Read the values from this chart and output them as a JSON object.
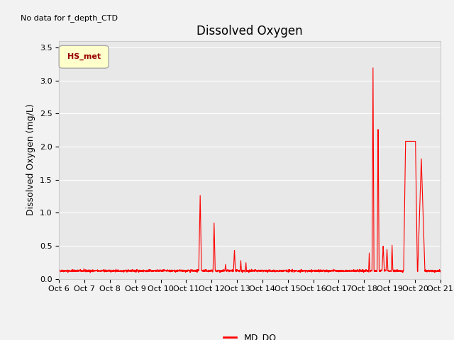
{
  "title": "Dissolved Oxygen",
  "no_data_text": "No data for f_depth_CTD",
  "ylabel": "Dissolved Oxygen (mg/L)",
  "ylim": [
    0.0,
    3.6
  ],
  "yticks": [
    0.0,
    0.5,
    1.0,
    1.5,
    2.0,
    2.5,
    3.0,
    3.5
  ],
  "xlabels": [
    "Oct 6",
    "Oct 7",
    "Oct 8",
    "Oct 9",
    "Oct 10",
    "Oct 11",
    "Oct 12",
    "Oct 13",
    "Oct 14",
    "Oct 15",
    "Oct 16",
    "Oct 17",
    "Oct 18",
    "Oct 19",
    "Oct 20",
    "Oct 21"
  ],
  "line_color": "#ff0000",
  "line_label": "MD_DO",
  "legend_label": "HS_met",
  "legend_facecolor": "#ffffcc",
  "legend_edgecolor": "#aaaaaa",
  "fig_bg_color": "#f2f2f2",
  "plot_bg_color": "#e8e8e8",
  "grid_color": "#ffffff",
  "title_fontsize": 12,
  "label_fontsize": 9,
  "tick_fontsize": 8,
  "nodata_fontsize": 8
}
